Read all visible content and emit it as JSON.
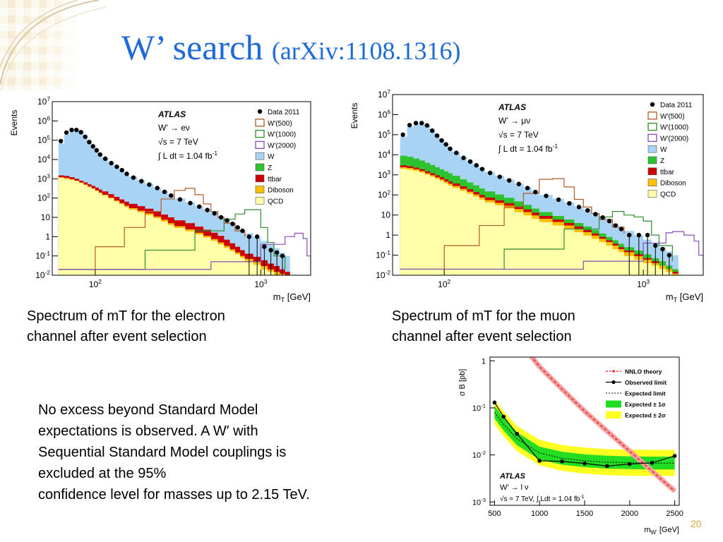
{
  "slide": {
    "title_main": "W’ search ",
    "title_sub": "(arXiv:1108.1316)",
    "page_number": "20",
    "caption_left": "Spectrum of mT for the electron\nchannel after event selection",
    "caption_right": "Spectrum of mT for the muon\nchannel after event selection",
    "note": "No excess beyond Standard Model\nexpectations is observed. A W′ with\nSequential Standard Model couplings is\nexcluded at the 95%\nconfidence level for masses up to 2.15 TeV."
  },
  "colors": {
    "title": "#1d6ad8",
    "W": "#a9d3f5",
    "Z": "#2ec32e",
    "ttbar": "#cc0000",
    "Diboson": "#ffc000",
    "QCD": "#ffffaa",
    "Wp500": "#b05a2a",
    "Wp1000": "#2f8a2f",
    "Wp2000": "#8a4bb8",
    "band1": "#22dd22",
    "band2": "#ffff22",
    "theory": "#ee2222"
  },
  "chart_data": [
    {
      "type": "area",
      "panel": "electron",
      "ylabel": "Events",
      "xlabel": "m_T [GeV]",
      "log_x": true,
      "log_y": true,
      "xlim": [
        55,
        2000
      ],
      "ylim": [
        0.01,
        10000000
      ],
      "yticks": [
        "10^7",
        "10^6",
        "10^5",
        "10^4",
        "10^3",
        "10^2",
        "10",
        "1",
        "10^-1",
        "10^-2"
      ],
      "xticks": [
        "10^2",
        "10^3"
      ],
      "annotation": {
        "experiment": "ATLAS",
        "process": "W’ → eν",
        "energy": "√s = 7 TeV",
        "lumi": "∫ L dt = 1.04 fb^-1"
      },
      "legend": [
        "Data 2011",
        "W'(500)",
        "W'(1000)",
        "W'(2000)",
        "W",
        "Z",
        "ttbar",
        "Diboson",
        "QCD"
      ],
      "bins": [
        60,
        65,
        70,
        75,
        80,
        85,
        90,
        95,
        100,
        105,
        110,
        120,
        130,
        140,
        150,
        160,
        180,
        200,
        225,
        250,
        275,
        300,
        350,
        400,
        450,
        500,
        550,
        600,
        650,
        700,
        750,
        800,
        900,
        1000,
        1100,
        1200,
        1300,
        1400,
        1500
      ],
      "W_total": [
        70000,
        200000,
        300000,
        350000,
        290000,
        170000,
        95000,
        55000,
        33000,
        20000,
        12500,
        7000,
        4500,
        3000,
        2000,
        1300,
        850,
        560,
        360,
        230,
        150,
        95,
        60,
        40,
        26,
        18,
        11,
        7.5,
        5,
        3.5,
        2.2,
        1.5,
        1,
        0.6,
        0.4,
        0.25,
        0.15,
        0.1
      ],
      "ttbar_top": [
        1500,
        1400,
        1200,
        1000,
        800,
        650,
        520,
        430,
        350,
        280,
        220,
        160,
        115,
        85,
        65,
        50,
        38,
        28,
        20,
        14,
        10,
        7,
        5,
        3.3,
        2.3,
        1.6,
        1.1,
        0.7,
        0.45,
        0.3,
        0.2,
        0.13,
        0.09,
        0.06,
        0.04,
        0.03,
        0.02,
        0.015
      ],
      "diboson_top": [
        1200,
        1100,
        950,
        800,
        640,
        510,
        400,
        320,
        250,
        195,
        150,
        105,
        75,
        55,
        40,
        30,
        22,
        16,
        11,
        7.5,
        5,
        3.5,
        2.4,
        1.6,
        1.1,
        0.75,
        0.5,
        0.33,
        0.22,
        0.15,
        0.1,
        0.07,
        0.05,
        0.03,
        0.02,
        0.015,
        0.012,
        0.01
      ],
      "QCD_top": [
        1100,
        1000,
        900,
        760,
        600,
        480,
        380,
        300,
        230,
        180,
        135,
        95,
        67,
        48,
        34,
        25,
        18,
        13,
        9,
        6,
        4,
        2.8,
        1.9,
        1.3,
        0.9,
        0.6,
        0.4,
        0.26,
        0.18,
        0.12,
        0.08,
        0.05,
        0.035,
        0.02,
        0.015,
        0.01,
        0.01,
        0.01
      ],
      "data_x": [
        62,
        67,
        72,
        77,
        82,
        87,
        92,
        97,
        102,
        107,
        115,
        125,
        135,
        145,
        155,
        170,
        190,
        212,
        237,
        262,
        287,
        325,
        375,
        425,
        475,
        525,
        575,
        625,
        675,
        725,
        775,
        850,
        950,
        1050,
        1150,
        1250,
        1350
      ],
      "data_y": [
        90000,
        250000,
        340000,
        340000,
        260000,
        150000,
        80000,
        48000,
        30000,
        18000,
        11000,
        6500,
        4200,
        2800,
        1800,
        1150,
        750,
        500,
        330,
        210,
        135,
        85,
        55,
        36,
        24,
        16,
        10,
        7,
        4.6,
        3,
        2,
        1,
        1,
        0.3,
        0.2,
        0.15,
        0.1
      ],
      "wp500": {
        "x": [
          60,
          100,
          150,
          200,
          250,
          300,
          350,
          400,
          450,
          500,
          550,
          600,
          700,
          800
        ],
        "y": [
          0.02,
          0.3,
          3,
          20,
          90,
          250,
          320,
          150,
          50,
          20,
          10,
          5,
          2,
          1
        ]
      },
      "wp1000": {
        "x": [
          60,
          200,
          400,
          600,
          700,
          800,
          900,
          1000,
          1100,
          1200,
          1400
        ],
        "y": [
          0.02,
          0.2,
          2,
          8,
          15,
          25,
          25,
          3,
          0.5,
          0.1,
          0.02
        ]
      },
      "wp2000": {
        "x": [
          60,
          500,
          1000,
          1400,
          1600,
          1800,
          1900,
          2000
        ],
        "y": [
          0.02,
          0.05,
          0.4,
          1,
          1.5,
          0.8,
          0.1,
          0.02
        ]
      }
    },
    {
      "type": "area",
      "panel": "muon",
      "ylabel": "Events",
      "xlabel": "m_T [GeV]",
      "log_x": true,
      "log_y": true,
      "xlim": [
        55,
        2000
      ],
      "ylim": [
        0.01,
        10000000
      ],
      "yticks": [
        "10^7",
        "10^6",
        "10^5",
        "10^4",
        "10^3",
        "10^2",
        "10",
        "1",
        "10^-1",
        "10^-2"
      ],
      "xticks": [
        "10^2",
        "10^3"
      ],
      "annotation": {
        "experiment": "ATLAS",
        "process": "W’ → μν",
        "energy": "√s = 7 TeV",
        "lumi": "∫ L dt = 1.04 fb^-1"
      },
      "legend": [
        "Data 2011",
        "W'(500)",
        "W'(1000)",
        "W'(2000)",
        "W",
        "Z",
        "ttbar",
        "Diboson",
        "QCD"
      ],
      "bins": [
        60,
        65,
        70,
        75,
        80,
        85,
        90,
        95,
        100,
        105,
        110,
        120,
        130,
        140,
        150,
        160,
        180,
        200,
        225,
        250,
        275,
        300,
        350,
        400,
        450,
        500,
        550,
        600,
        650,
        700,
        750,
        800,
        900,
        1000,
        1100,
        1200,
        1300,
        1400,
        1500
      ],
      "W_total": [
        80000,
        250000,
        350000,
        400000,
        310000,
        180000,
        100000,
        60000,
        36000,
        22000,
        14000,
        8000,
        5000,
        3300,
        2200,
        1400,
        900,
        600,
        380,
        240,
        160,
        100,
        65,
        42,
        28,
        19,
        12,
        8,
        5.2,
        3.6,
        2.3,
        1.6,
        1,
        0.6,
        0.4,
        0.25,
        0.15,
        0.1
      ],
      "Z_top": [
        9000,
        8000,
        6500,
        5200,
        4000,
        3100,
        2400,
        1900,
        1500,
        1200,
        900,
        600,
        420,
        300,
        210,
        150,
        105,
        72,
        48,
        32,
        21,
        14,
        9,
        6,
        4,
        2.7,
        1.8,
        1.2,
        0.8,
        0.55,
        0.37,
        0.25,
        0.17,
        0.11,
        0.07,
        0.05,
        0.03,
        0.02
      ],
      "ttbar_top": [
        3000,
        2700,
        2300,
        1900,
        1500,
        1200,
        950,
        760,
        600,
        470,
        370,
        270,
        195,
        140,
        100,
        74,
        54,
        39,
        27,
        19,
        13,
        9,
        6,
        4,
        2.7,
        1.8,
        1.2,
        0.8,
        0.55,
        0.37,
        0.25,
        0.17,
        0.11,
        0.07,
        0.05,
        0.03,
        0.02,
        0.015
      ],
      "diboson_top": [
        2400,
        2200,
        1900,
        1550,
        1200,
        950,
        750,
        590,
        460,
        360,
        280,
        200,
        145,
        105,
        75,
        55,
        40,
        29,
        20,
        14,
        9.5,
        6.5,
        4.5,
        3,
        2,
        1.4,
        0.95,
        0.65,
        0.45,
        0.3,
        0.2,
        0.14,
        0.09,
        0.06,
        0.04,
        0.03,
        0.02,
        0.012
      ],
      "QCD_top": [
        2000,
        1800,
        1550,
        1300,
        1000,
        800,
        620,
        490,
        380,
        290,
        225,
        160,
        115,
        82,
        58,
        42,
        30,
        21,
        14,
        9.5,
        6.5,
        4.4,
        3,
        2,
        1.4,
        0.95,
        0.65,
        0.45,
        0.3,
        0.2,
        0.14,
        0.09,
        0.06,
        0.04,
        0.03,
        0.02,
        0.015,
        0.01
      ],
      "data_x": [
        62,
        67,
        72,
        77,
        82,
        87,
        92,
        97,
        102,
        107,
        115,
        125,
        135,
        145,
        155,
        170,
        190,
        212,
        237,
        262,
        287,
        325,
        375,
        425,
        475,
        525,
        575,
        625,
        675,
        725,
        775,
        850,
        950,
        1050,
        1150,
        1250,
        1350
      ],
      "data_y": [
        100000,
        300000,
        380000,
        380000,
        290000,
        160000,
        90000,
        52000,
        33000,
        20000,
        12500,
        7000,
        4600,
        3000,
        1950,
        1250,
        800,
        530,
        350,
        220,
        140,
        90,
        58,
        38,
        25,
        17,
        11,
        7.5,
        5,
        3,
        2,
        1,
        1,
        1,
        0.3,
        0.2,
        0.1
      ],
      "wp500": {
        "x": [
          60,
          100,
          150,
          200,
          250,
          300,
          350,
          400,
          450,
          500,
          550,
          600,
          700,
          800
        ],
        "y": [
          0.02,
          0.3,
          3,
          25,
          120,
          600,
          650,
          250,
          60,
          25,
          12,
          6,
          2.5,
          1.2
        ]
      },
      "wp1000": {
        "x": [
          60,
          200,
          400,
          600,
          700,
          800,
          900,
          1000,
          1100,
          1200,
          1400
        ],
        "y": [
          0.02,
          0.2,
          2,
          8,
          15,
          10,
          8,
          5,
          1,
          0.3,
          0.05
        ]
      },
      "wp2000": {
        "x": [
          60,
          500,
          1000,
          1300,
          1400,
          1600,
          1800,
          1900,
          2000
        ],
        "y": [
          0.02,
          0.05,
          0.4,
          1.3,
          1.5,
          1,
          0.5,
          0.1,
          0.02
        ]
      }
    },
    {
      "type": "line",
      "panel": "limit",
      "ylabel": "σ B [pb]",
      "xlabel": "m_W’ [GeV]",
      "log_y": true,
      "xlim": [
        450,
        2550
      ],
      "ylim": [
        0.00085,
        1.2
      ],
      "xticks": [
        500,
        1000,
        1500,
        2000,
        2500
      ],
      "yticks": [
        "1",
        "10^-1",
        "10^-2",
        "10^-3"
      ],
      "annotation": {
        "experiment": "ATLAS",
        "process": "W’ → l ν",
        "energy_lumi": "√s = 7 TeV, ∫ Ldt = 1.04 fb^-1"
      },
      "legend": [
        "NNLO theory",
        "Observed limit",
        "Expected  limit",
        "Expected ± 1σ",
        "Expected ± 2σ"
      ],
      "observed": {
        "x": [
          500,
          600,
          750,
          1000,
          1250,
          1500,
          1750,
          2000,
          2250,
          2500
        ],
        "y": [
          0.13,
          0.065,
          0.028,
          0.0075,
          0.0073,
          0.0066,
          0.0058,
          0.0064,
          0.0068,
          0.0095
        ]
      },
      "expected": {
        "x": [
          500,
          600,
          750,
          1000,
          1250,
          1500,
          1750,
          2000,
          2250,
          2500
        ],
        "y": [
          0.08,
          0.045,
          0.022,
          0.011,
          0.0085,
          0.0075,
          0.007,
          0.0068,
          0.0067,
          0.0067
        ]
      },
      "band1": {
        "lo": [
          0.06,
          0.033,
          0.016,
          0.008,
          0.0062,
          0.0055,
          0.0051,
          0.005,
          0.0049,
          0.0049
        ],
        "hi": [
          0.11,
          0.062,
          0.03,
          0.015,
          0.0117,
          0.0103,
          0.0096,
          0.0093,
          0.0092,
          0.0092
        ]
      },
      "band2": {
        "lo": [
          0.045,
          0.025,
          0.012,
          0.006,
          0.0046,
          0.004,
          0.0037,
          0.0036,
          0.0036,
          0.0036
        ],
        "hi": [
          0.15,
          0.085,
          0.041,
          0.021,
          0.0162,
          0.0143,
          0.0133,
          0.013,
          0.0128,
          0.0128
        ]
      },
      "theory": {
        "x": [
          900,
          1000,
          1250,
          1500,
          1750,
          2000,
          2250,
          2500
        ],
        "y": [
          1.3,
          0.75,
          0.25,
          0.085,
          0.032,
          0.012,
          0.0045,
          0.0017
        ]
      }
    }
  ]
}
